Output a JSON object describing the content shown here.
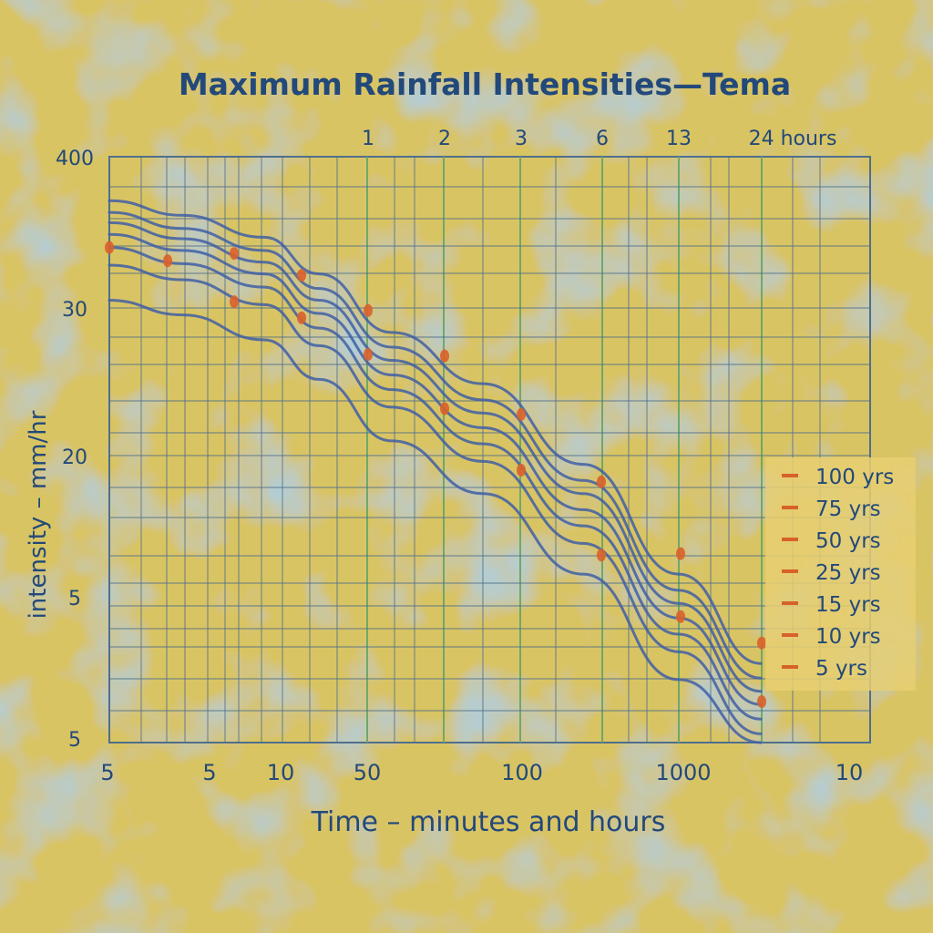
{
  "chart_data": {
    "type": "line",
    "title": "Maximum Rainfall Intensities—Tema",
    "xlabel": "Time – minutes and hours",
    "ylabel": "intensity – mm/hr",
    "x_tick_labels": [
      "5",
      "5",
      "10",
      "50",
      "100",
      "1000",
      "10"
    ],
    "top_tick_labels": [
      "1",
      "2",
      "3",
      "6",
      "13",
      "24 hours"
    ],
    "y_tick_labels": [
      "400",
      "30",
      "20",
      "5",
      "5"
    ],
    "grid": true,
    "legend_position": "right",
    "series": [
      {
        "name": "100 yrs",
        "values": [
          37.0,
          36.0,
          34.5,
          32.0,
          28.0,
          24.5,
          19.0,
          11.5,
          5.4
        ]
      },
      {
        "name": "75 yrs",
        "values": [
          36.2,
          35.1,
          33.6,
          31.0,
          27.0,
          23.4,
          17.9,
          10.4,
          4.4
        ]
      },
      {
        "name": "50 yrs",
        "values": [
          35.5,
          34.4,
          32.8,
          30.2,
          26.1,
          22.5,
          17.0,
          9.5,
          3.5
        ]
      },
      {
        "name": "25 yrs",
        "values": [
          34.7,
          33.6,
          32.0,
          29.3,
          25.1,
          21.5,
          15.9,
          8.5,
          2.6
        ]
      },
      {
        "name": "15 yrs",
        "values": [
          33.8,
          32.7,
          31.1,
          28.3,
          24.1,
          20.4,
          14.8,
          7.4,
          1.6
        ]
      },
      {
        "name": "10 yrs",
        "values": [
          32.6,
          31.6,
          29.9,
          27.1,
          22.9,
          19.2,
          13.6,
          6.2,
          0.6
        ]
      },
      {
        "name": "5 yrs",
        "values": [
          30.2,
          29.2,
          27.5,
          24.8,
          20.6,
          17.0,
          11.5,
          4.3,
          0.0
        ]
      }
    ],
    "markers": [
      {
        "x": "5",
        "y": 33.8
      },
      {
        "x": "10",
        "y": 32.9
      },
      {
        "x": "20",
        "y": 33.4
      },
      {
        "x": "20",
        "y": 30.1
      },
      {
        "x": "30",
        "y": 31.9
      },
      {
        "x": "30",
        "y": 29.0
      },
      {
        "x": "50",
        "y": 29.5
      },
      {
        "x": "50",
        "y": 26.5
      },
      {
        "x": "2h",
        "y": 26.4
      },
      {
        "x": "2h",
        "y": 22.8
      },
      {
        "x": "3h",
        "y": 22.4
      },
      {
        "x": "3h",
        "y": 18.6
      },
      {
        "x": "6h",
        "y": 17.8
      },
      {
        "x": "6h",
        "y": 12.8
      },
      {
        "x": "13h",
        "y": 12.9
      },
      {
        "x": "13h",
        "y": 8.6
      },
      {
        "x": "24h",
        "y": 6.8
      },
      {
        "x": "24h",
        "y": 2.8
      }
    ],
    "colors": {
      "background": "#d9c463",
      "grid": "#4f6f8c",
      "grid_major": "#6fa86a",
      "curves": "#3f5fa6",
      "markers": "#d9612a",
      "text": "#22497a",
      "legend_bg": "#e6cf72"
    }
  }
}
